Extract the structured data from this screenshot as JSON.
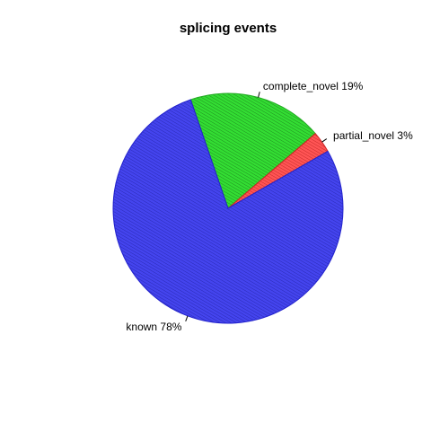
{
  "chart_data": {
    "type": "pie",
    "title": "splicing events",
    "slices": [
      {
        "label": "complete_novel 19%",
        "value": 19,
        "color": "#33dd33",
        "edge": "#22aa22",
        "hatch": "#1f8f1f"
      },
      {
        "label": "partial_novel 3%",
        "value": 3,
        "color": "#ff5555",
        "edge": "#cc2222",
        "hatch": "#c62828"
      },
      {
        "label": "known 78%",
        "value": 78,
        "color": "#4444ee",
        "edge": "#2222cc",
        "hatch": "#2a2ab5"
      }
    ],
    "start_angle_deg": 109,
    "direction": "clockwise",
    "legend": "none"
  }
}
